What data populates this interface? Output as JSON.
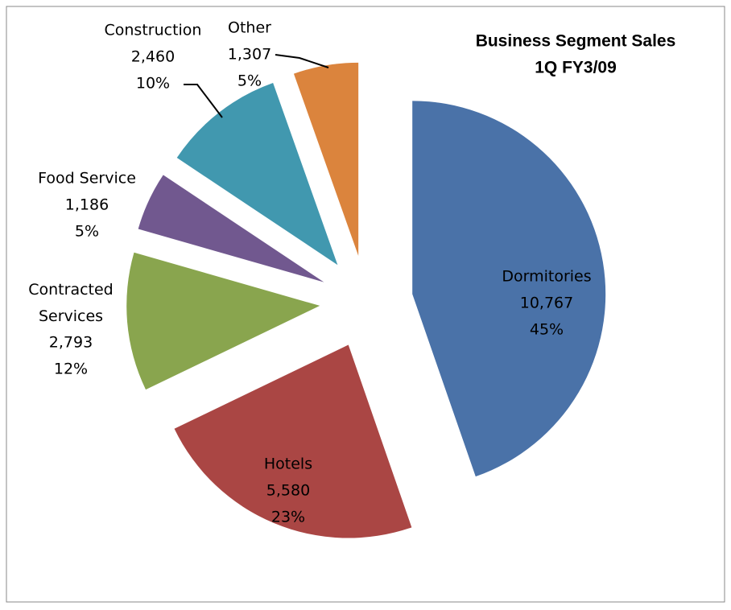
{
  "chart_data": {
    "type": "pie",
    "title": "Business Segment Sales",
    "subtitle": "1Q FY3/09",
    "categories": [
      "Dormitories",
      "Hotels",
      "Contracted Services",
      "Food Service",
      "Construction",
      "Other"
    ],
    "values": [
      10767,
      5580,
      2793,
      1186,
      2460,
      1307
    ],
    "value_labels": [
      "10,767",
      "5,580",
      "2,793",
      "1,186",
      "2,460",
      "1,307"
    ],
    "percents": [
      45,
      23,
      12,
      5,
      10,
      5
    ],
    "percent_labels": [
      "45%",
      "23%",
      "12%",
      "5%",
      "10%",
      "5%"
    ],
    "colors": [
      "#4a72a8",
      "#aa4644",
      "#89a54e",
      "#71588f",
      "#4198af",
      "#db843d"
    ]
  }
}
